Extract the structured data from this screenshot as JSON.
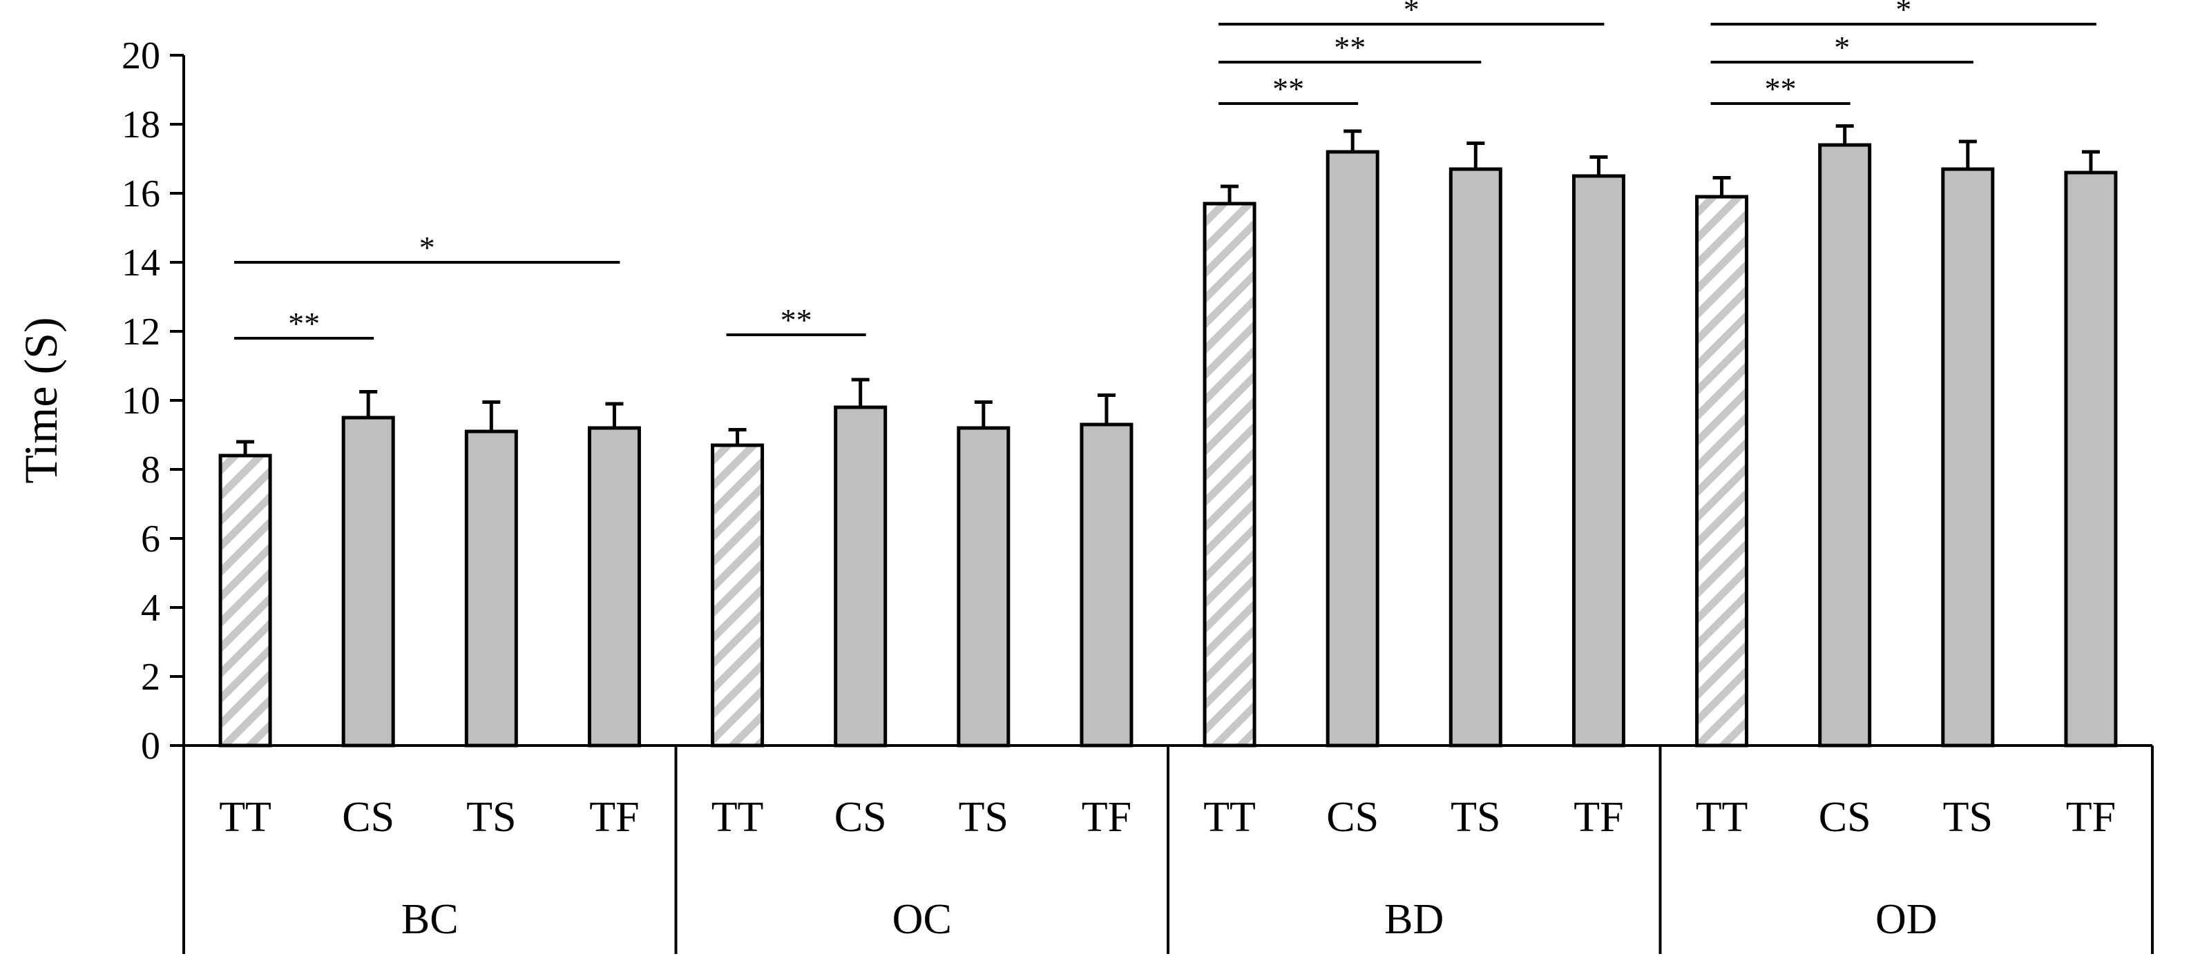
{
  "chart_data": {
    "type": "bar",
    "title": "",
    "ylabel": "Time (S)",
    "xlabel": "",
    "ylim": [
      0,
      20
    ],
    "yticks": [
      0,
      2,
      4,
      6,
      8,
      10,
      12,
      14,
      16,
      18,
      20
    ],
    "groups": [
      "BC",
      "OC",
      "BD",
      "OD"
    ],
    "categories": [
      "TT",
      "CS",
      "TS",
      "TF"
    ],
    "series": [
      {
        "group": "BC",
        "values": [
          8.4,
          9.5,
          9.1,
          9.2
        ],
        "errors": [
          0.4,
          0.75,
          0.85,
          0.7
        ]
      },
      {
        "group": "OC",
        "values": [
          8.7,
          9.8,
          9.2,
          9.3
        ],
        "errors": [
          0.45,
          0.8,
          0.75,
          0.85
        ]
      },
      {
        "group": "BD",
        "values": [
          15.7,
          17.2,
          16.7,
          16.5
        ],
        "errors": [
          0.5,
          0.6,
          0.75,
          0.55
        ]
      },
      {
        "group": "OD",
        "values": [
          15.9,
          17.4,
          16.7,
          16.6
        ],
        "errors": [
          0.55,
          0.55,
          0.8,
          0.6
        ]
      }
    ],
    "bar_styles": {
      "TT": "hatched",
      "CS": "solid",
      "TS": "solid",
      "TF": "solid"
    },
    "colors": {
      "solid": "#bfbfbf",
      "hatch": "#c8c8c8",
      "edge": "#000000"
    },
    "significance": [
      {
        "group": "BC",
        "from": "TT",
        "to": "CS",
        "y": 11.8,
        "label": "**"
      },
      {
        "group": "BC",
        "from": "TT",
        "to": "TF",
        "y": 14.0,
        "label": "*"
      },
      {
        "group": "OC",
        "from": "TT",
        "to": "CS",
        "y": 11.9,
        "label": "**"
      },
      {
        "group": "BD",
        "from": "TT",
        "to": "CS",
        "y": 18.6,
        "label": "**"
      },
      {
        "group": "BD",
        "from": "TT",
        "to": "TS",
        "y": 19.8,
        "label": "**"
      },
      {
        "group": "BD",
        "from": "TT",
        "to": "TF",
        "y": 20.9,
        "label": "*"
      },
      {
        "group": "OD",
        "from": "TT",
        "to": "CS",
        "y": 18.6,
        "label": "**"
      },
      {
        "group": "OD",
        "from": "TT",
        "to": "TS",
        "y": 19.8,
        "label": "*"
      },
      {
        "group": "OD",
        "from": "TT",
        "to": "TF",
        "y": 20.9,
        "label": "*"
      }
    ]
  }
}
